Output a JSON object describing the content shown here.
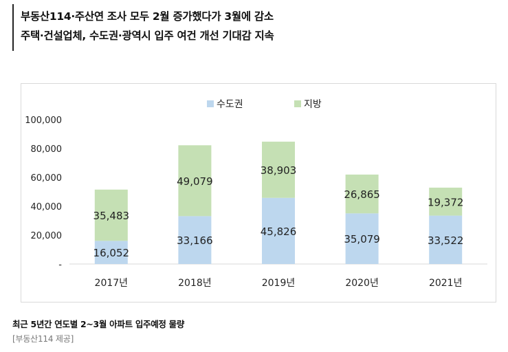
{
  "headline": {
    "line1": "부동산114·주산연 조사 모두 2월 증가했다가 3월에 감소",
    "line2": "주택·건설업체, 수도권·광역시 입주 여건 개선 기대감 지속"
  },
  "caption": "최근 5년간 연도별 2~3월 아파트 입주예정 물량",
  "credit": "[부동산114 제공]",
  "colors": {
    "capital": "#bdd7ee",
    "regional": "#c5e0b4",
    "axis": "#d9d9d9"
  },
  "chart_data": {
    "type": "bar",
    "stacked": true,
    "categories": [
      "2017년",
      "2018년",
      "2019년",
      "2020년",
      "2021년"
    ],
    "series": [
      {
        "name": "수도권",
        "values": [
          16052,
          33166,
          45826,
          35079,
          33522
        ],
        "labels": [
          "16,052",
          "33,166",
          "45,826",
          "35,079",
          "33,522"
        ]
      },
      {
        "name": "지방",
        "values": [
          35483,
          49079,
          38903,
          26865,
          19372
        ],
        "labels": [
          "35,483",
          "49,079",
          "38,903",
          "26,865",
          "19,372"
        ]
      }
    ],
    "ylim": [
      0,
      100000
    ],
    "yticks": [
      {
        "value": 0,
        "label": "-"
      },
      {
        "value": 20000,
        "label": "20,000"
      },
      {
        "value": 40000,
        "label": "40,000"
      },
      {
        "value": 60000,
        "label": "60,000"
      },
      {
        "value": 80000,
        "label": "80,000"
      },
      {
        "value": 100000,
        "label": "100,000"
      }
    ],
    "legend_position": "top-center",
    "grid": false
  }
}
